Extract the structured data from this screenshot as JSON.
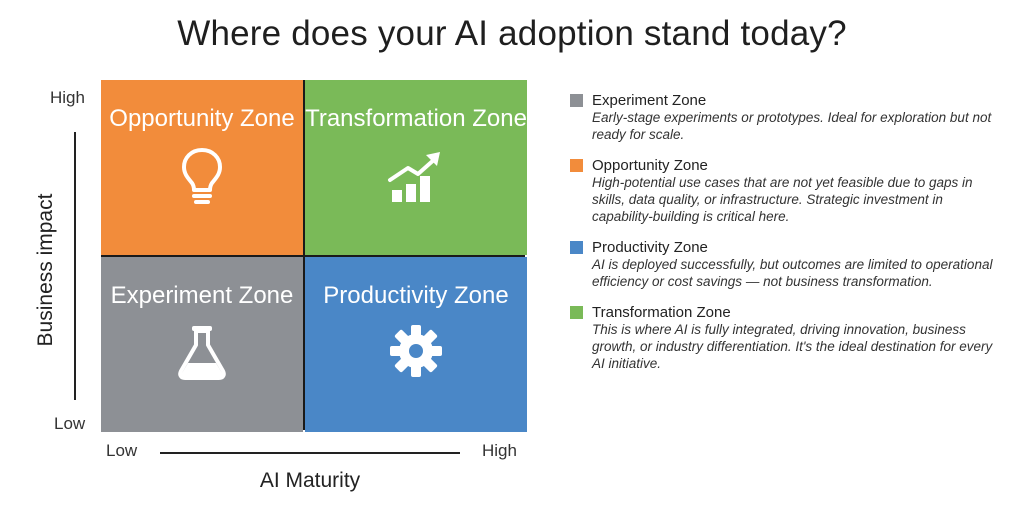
{
  "title": "Where does your AI adoption stand today?",
  "y_axis": {
    "label": "Business impact",
    "high": "High",
    "low": "Low"
  },
  "x_axis": {
    "label": "AI Maturity",
    "low": "Low",
    "high": "High"
  },
  "quadrants": [
    {
      "label": "Opportunity Zone",
      "color": "#f28c3b",
      "icon": "lightbulb-icon"
    },
    {
      "label": "Transformation Zone",
      "color": "#7aba58",
      "icon": "growth-chart-icon"
    },
    {
      "label": "Experiment Zone",
      "color": "#8d9095",
      "icon": "flask-icon"
    },
    {
      "label": "Productivity Zone",
      "color": "#4a87c7",
      "icon": "gear-icon"
    }
  ],
  "legend": [
    {
      "title": "Experiment Zone",
      "color": "#8d9095",
      "desc": "Early-stage experiments or prototypes. Ideal for exploration but not ready for scale."
    },
    {
      "title": "Opportunity Zone",
      "color": "#f28c3b",
      "desc": "High-potential use cases that are not yet feasible due to gaps in skills, data quality, or infrastructure. Strategic investment in capability-building is critical here."
    },
    {
      "title": "Productivity Zone",
      "color": "#4a87c7",
      "desc": "AI is deployed successfully, but outcomes are limited to operational efficiency or cost savings — not business transformation."
    },
    {
      "title": "Transformation Zone",
      "color": "#7aba58",
      "desc": "This is where AI is fully integrated, driving innovation, business growth, or industry differentiation. It's the ideal destination for every AI initiative."
    }
  ]
}
